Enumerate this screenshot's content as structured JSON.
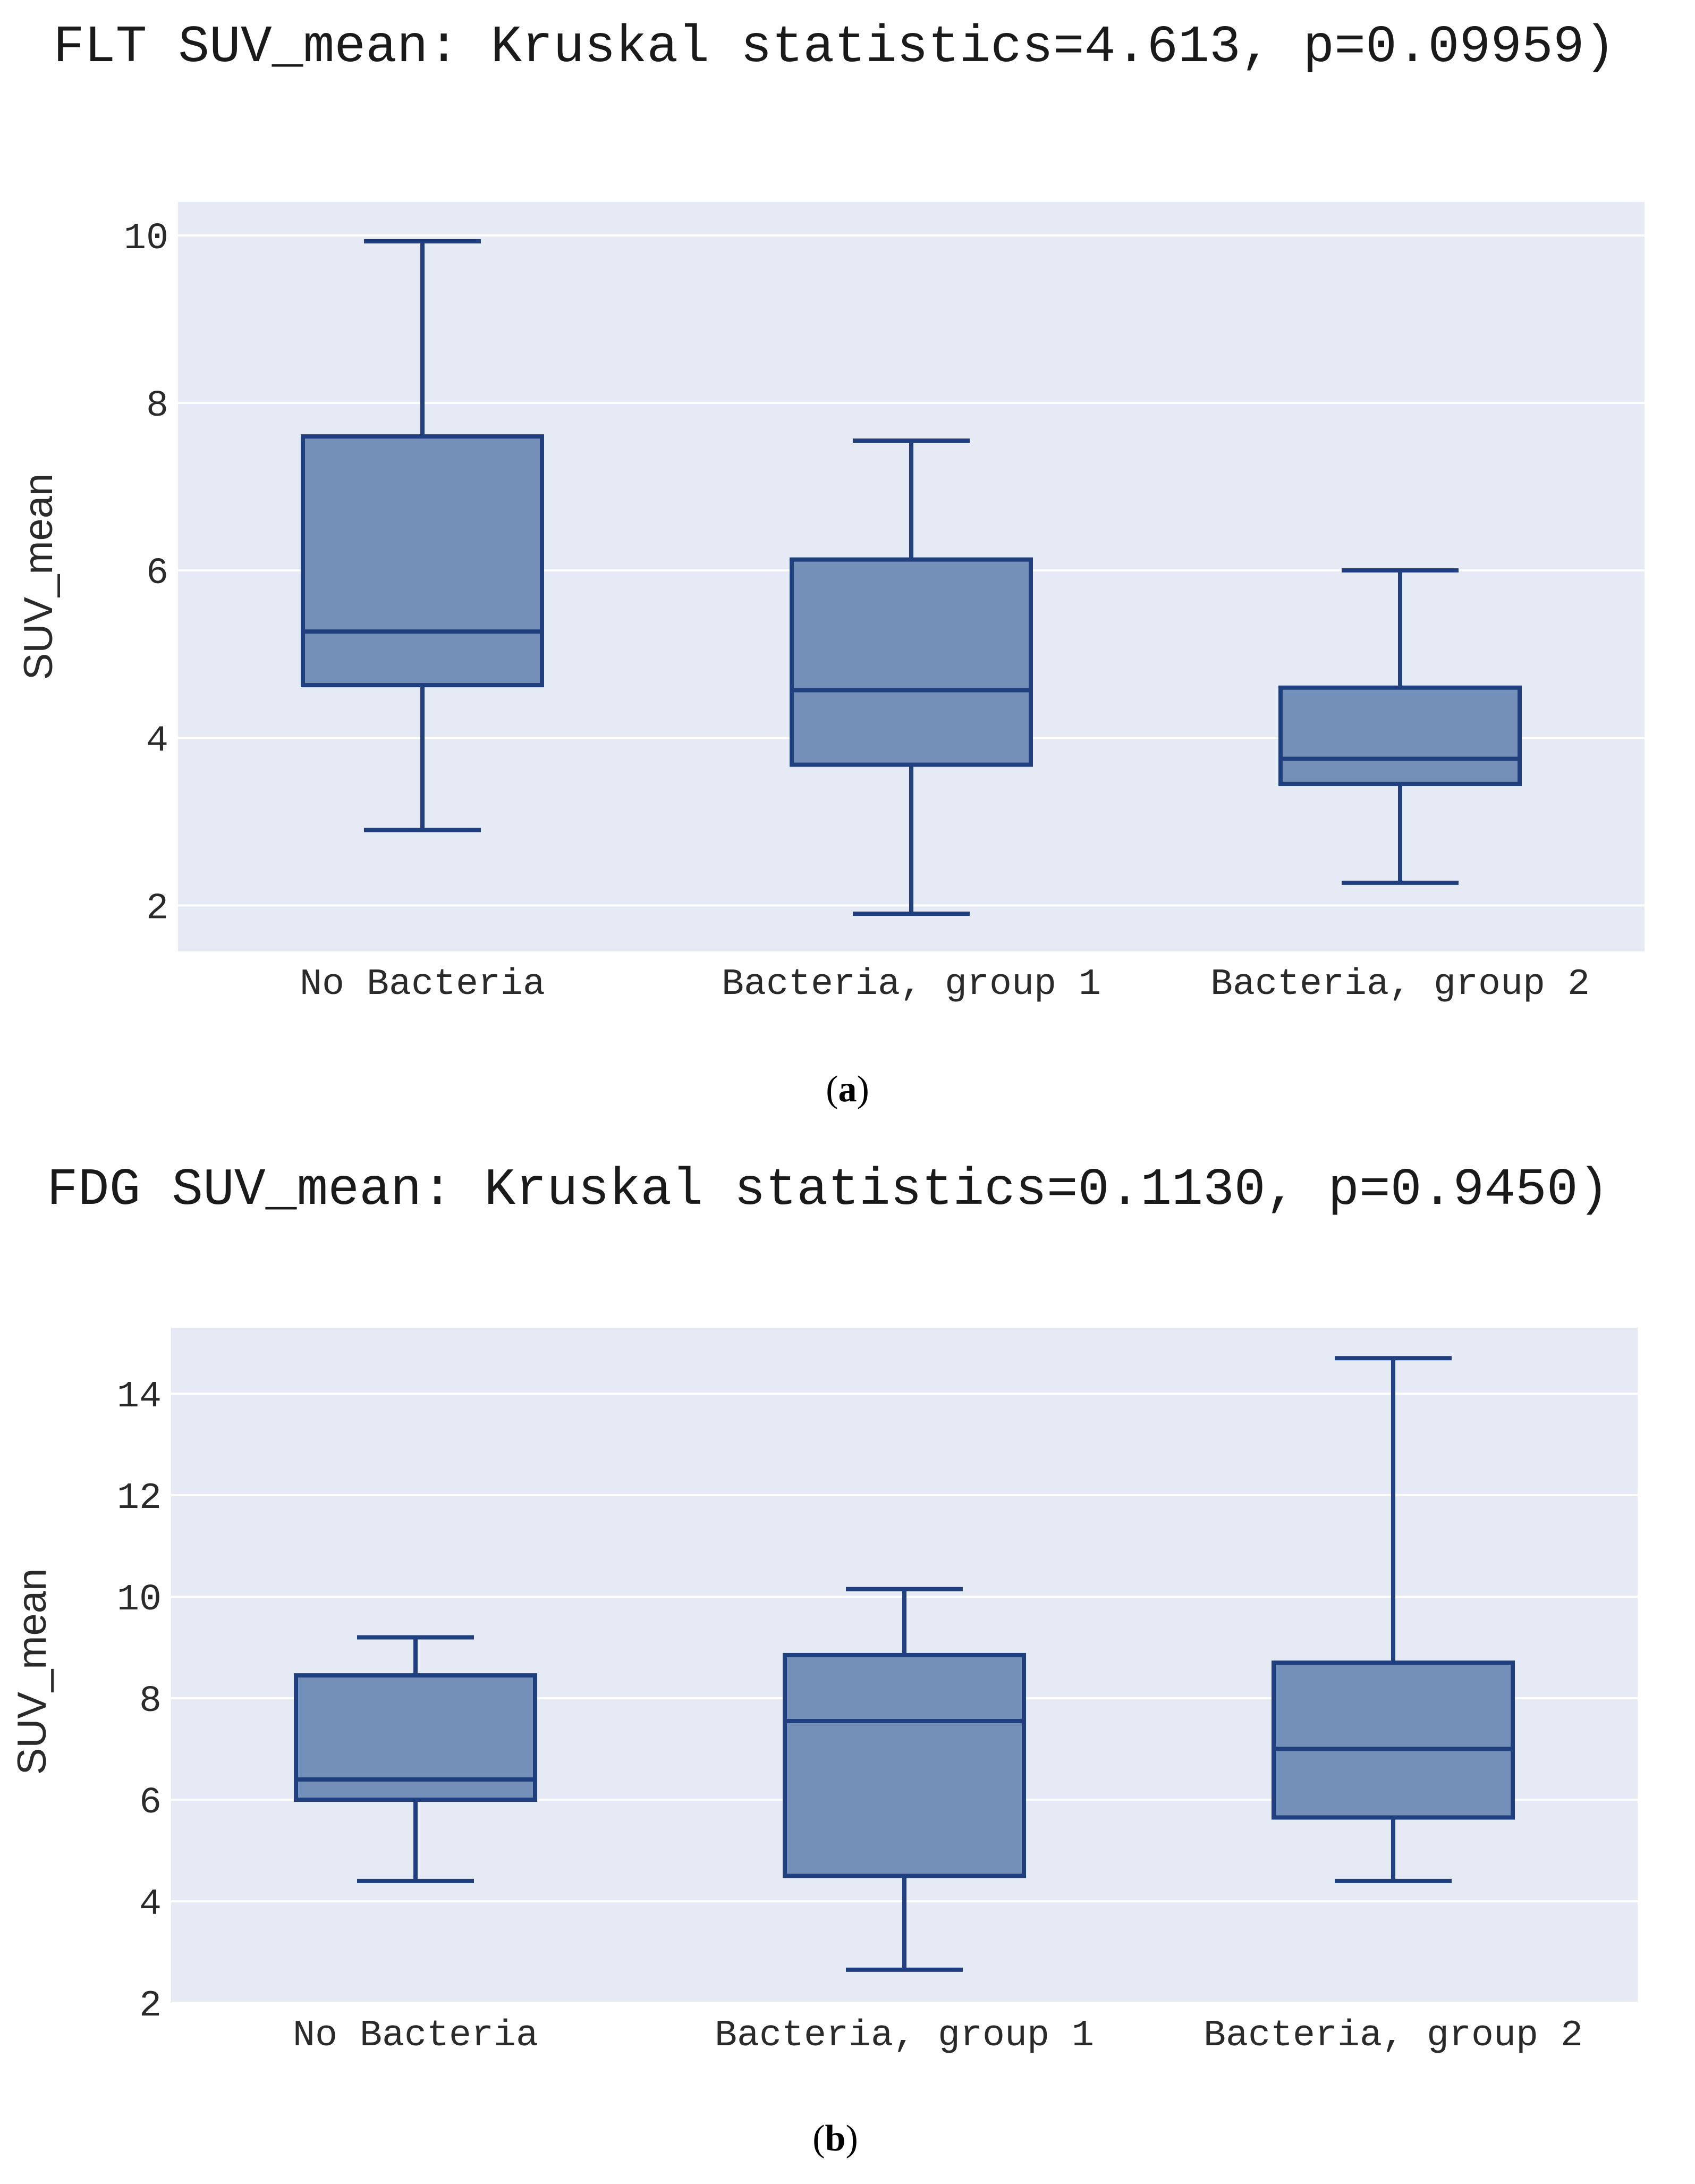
{
  "figures": [
    {
      "caption_open": "(",
      "caption_letter": "a",
      "caption_close": ")",
      "chart_data": {
        "type": "box",
        "title": "FLT SUV_mean: Kruskal statistics=4.613, p=0.09959)",
        "xlabel": "",
        "ylabel": "SUV_mean",
        "ylim": [
          1.45,
          10.4
        ],
        "yticks": [
          2,
          4,
          6,
          8,
          10
        ],
        "grid": true,
        "categories": [
          "No Bacteria",
          "Bacteria, group 1",
          "Bacteria, group 2"
        ],
        "boxes": [
          {
            "name": "No Bacteria",
            "min": 2.9,
            "q1": 4.63,
            "median": 5.27,
            "q3": 7.6,
            "max": 9.93
          },
          {
            "name": "Bacteria, group 1",
            "min": 1.9,
            "q1": 3.68,
            "median": 4.57,
            "q3": 6.13,
            "max": 7.55
          },
          {
            "name": "Bacteria, group 2",
            "min": 2.27,
            "q1": 3.45,
            "median": 3.75,
            "q3": 4.6,
            "max": 6.0
          }
        ],
        "colors": {
          "line": "#1f3f7f",
          "fill": "#7590b8",
          "plot_bg": "#e5eaf4",
          "grid": "#ffffff"
        }
      }
    },
    {
      "caption_open": "(",
      "caption_letter": "b",
      "caption_close": ")",
      "chart_data": {
        "type": "box",
        "title": "FDG SUV_mean: Kruskal statistics=0.1130, p=0.9450)",
        "xlabel": "",
        "ylabel": "SUV_mean",
        "ylim": [
          2.0,
          15.3
        ],
        "yticks": [
          2,
          4,
          6,
          8,
          10,
          12,
          14
        ],
        "grid": true,
        "categories": [
          "No Bacteria",
          "Bacteria, group 1",
          "Bacteria, group 2"
        ],
        "boxes": [
          {
            "name": "No Bacteria",
            "min": 4.4,
            "q1": 6.0,
            "median": 6.4,
            "q3": 8.45,
            "max": 9.2
          },
          {
            "name": "Bacteria, group 1",
            "min": 2.65,
            "q1": 4.5,
            "median": 7.55,
            "q3": 8.85,
            "max": 10.15
          },
          {
            "name": "Bacteria, group 2",
            "min": 4.4,
            "q1": 5.65,
            "median": 7.0,
            "q3": 8.7,
            "max": 14.7
          }
        ],
        "colors": {
          "line": "#1f3f7f",
          "fill": "#7590b8",
          "plot_bg": "#e5eaf4",
          "grid": "#ffffff"
        }
      }
    }
  ]
}
